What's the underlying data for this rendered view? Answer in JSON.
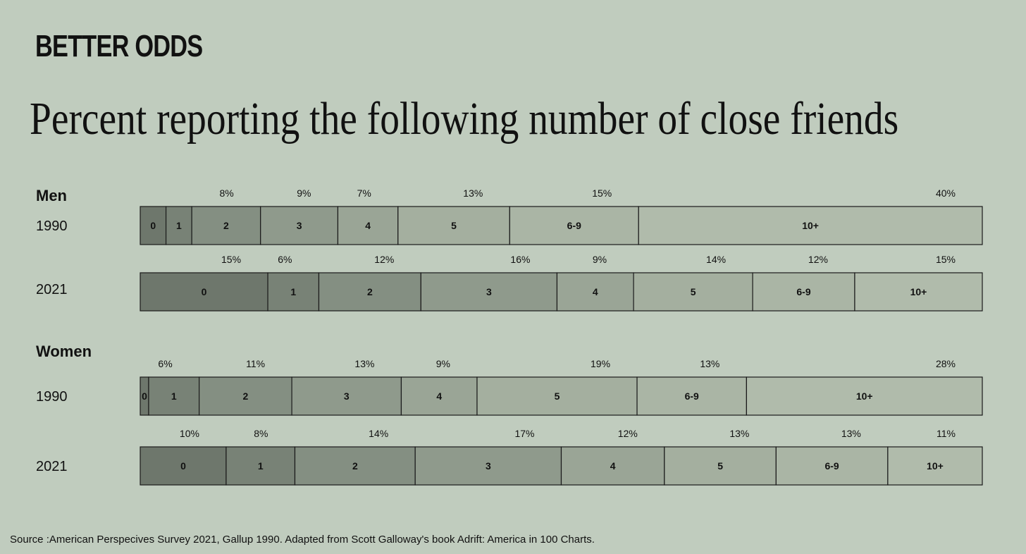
{
  "brand": "BETTER ODDS",
  "title": "Percent reporting the following number of close friends",
  "source": "Source :American Perspecives Survey 2021, Gallup 1990. Adapted from Scott Galloway's book Adrift: America in 100 Charts.",
  "chart_data": {
    "type": "bar",
    "orientation": "horizontal-stacked-100",
    "categories": [
      "0",
      "1",
      "2",
      "3",
      "4",
      "5",
      "6-9",
      "10+"
    ],
    "groups": [
      {
        "name": "Men",
        "series": [
          {
            "year": "1990",
            "values": [
              3,
              3,
              8,
              9,
              7,
              13,
              15,
              40
            ],
            "value_labels": [
              "",
              "",
              "8%",
              "9%",
              "7%",
              "13%",
              "15%",
              "40%"
            ]
          },
          {
            "year": "2021",
            "values": [
              15,
              6,
              12,
              16,
              9,
              14,
              12,
              15
            ],
            "value_labels": [
              "15%",
              "6%",
              "12%",
              "16%",
              "9%",
              "14%",
              "12%",
              "15%"
            ]
          }
        ]
      },
      {
        "name": "Women",
        "series": [
          {
            "year": "1990",
            "values": [
              1,
              6,
              11,
              13,
              9,
              19,
              13,
              28
            ],
            "value_labels": [
              "",
              "6%",
              "11%",
              "13%",
              "9%",
              "19%",
              "13%",
              "28%"
            ]
          },
          {
            "year": "2021",
            "values": [
              10,
              8,
              14,
              17,
              12,
              13,
              13,
              11
            ],
            "value_labels": [
              "10%",
              "8%",
              "14%",
              "17%",
              "12%",
              "13%",
              "13%",
              "11%"
            ]
          }
        ]
      }
    ],
    "colors": [
      "#6e776c",
      "#788276",
      "#848f82",
      "#8f9a8c",
      "#9aa596",
      "#a4af9f",
      "#aab5a5",
      "#b0bbab"
    ]
  }
}
